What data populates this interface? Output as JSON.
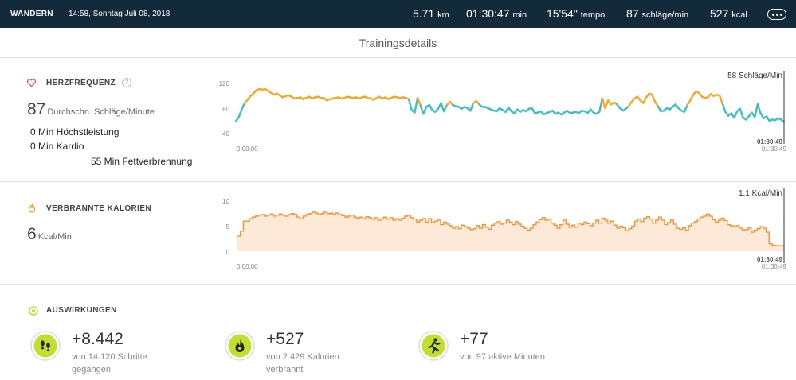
{
  "header": {
    "activity": "WANDERN",
    "datetime": "14:58, Sonntag Juli 08, 2018",
    "distance_value": "5.71",
    "distance_unit": "km",
    "duration_value": "01:30:47",
    "duration_unit": "min",
    "pace_value": "15'54\"",
    "pace_unit": "tempo",
    "hr_value": "87",
    "hr_unit": "schläge/min",
    "calories_value": "527",
    "calories_unit": "kcal"
  },
  "section_title": "Trainingsdetails",
  "heart_rate": {
    "title": "HERZFREQUENZ",
    "help": "?",
    "avg_value": "87",
    "avg_unit": "Durchschn. Schläge/Minute",
    "zones": [
      "0 Min Höchstleistung",
      "0 Min Kardio",
      "55 Min Fettverbrennung"
    ],
    "current_label": "58 Schläge/Min",
    "start_time": "0:00:00",
    "end_time": "01:30:49",
    "end_time_marker": "01:30:49"
  },
  "calories": {
    "title": "VERBRANNTE KALORIEN",
    "value": "6",
    "unit": "Kcal/Min",
    "current_label": "1.1 Kcal/Min",
    "start_time": "0:00:00",
    "end_time": "01:30:49",
    "end_time_marker": "01:30:49"
  },
  "impact": {
    "title": "AUSWIRKUNGEN",
    "items": [
      {
        "icon": "footsteps-icon",
        "value": "+8.442",
        "sub": "von 14.120 Schritte gegangen"
      },
      {
        "icon": "flame-icon",
        "value": "+527",
        "sub": "von 2.429 Kalorien verbrannt"
      },
      {
        "icon": "runner-icon",
        "value": "+77",
        "sub": "von 97 aktive Minuten"
      }
    ]
  },
  "colors": {
    "topbar": "#122a3a",
    "hr_high": "#f5a623",
    "hr_low": "#3ebfbf",
    "calories_line": "#f39233",
    "calories_fill": "#fde9d8",
    "impact_green": "#c4de2f",
    "heart_icon": "#e84a4a"
  },
  "chart_data": [
    {
      "type": "line",
      "title": "HERZFREQUENZ",
      "xlabel": "",
      "ylabel": "",
      "x_range": [
        "0:00:00",
        "01:30:49"
      ],
      "ylim": [
        40,
        120
      ],
      "yticks": [
        40,
        80,
        120
      ],
      "threshold": 86,
      "series": [
        {
          "values": [
            59,
            66,
            78,
            88,
            93,
            99,
            103,
            108,
            110,
            109,
            110,
            107,
            104,
            101,
            103,
            100,
            97,
            99,
            100,
            98,
            95,
            96,
            97,
            94,
            96,
            98,
            95,
            97,
            98,
            96,
            96,
            92,
            94,
            95,
            96,
            97,
            95,
            96,
            98,
            97,
            96,
            97,
            95,
            97,
            98,
            96,
            95,
            93,
            96,
            98,
            95,
            97,
            94,
            96,
            98,
            97,
            96,
            97,
            96,
            94,
            77,
            73,
            96,
            84,
            71,
            82,
            85,
            77,
            74,
            79,
            88,
            75,
            85,
            90,
            85,
            83,
            82,
            79,
            82,
            80,
            76,
            88,
            91,
            86,
            82,
            82,
            80,
            78,
            76,
            75,
            80,
            77,
            74,
            81,
            75,
            72,
            78,
            74,
            77,
            75,
            79,
            80,
            72,
            73,
            75,
            70,
            72,
            74,
            76,
            71,
            73,
            70,
            73,
            76,
            72,
            73,
            74,
            72,
            76,
            75,
            72,
            78,
            73,
            71,
            74,
            95,
            80,
            92,
            86,
            89,
            86,
            80,
            76,
            79,
            83,
            90,
            95,
            98,
            92,
            88,
            97,
            103,
            101,
            90,
            83,
            75,
            76,
            80,
            78,
            82,
            86,
            80,
            76,
            74,
            85,
            92,
            101,
            106,
            104,
            98,
            96,
            97,
            102,
            99,
            101,
            100,
            87,
            74,
            68,
            72,
            65,
            75,
            79,
            65,
            62,
            67,
            73,
            66,
            86,
            72,
            64,
            67,
            60,
            62,
            61,
            64,
            62,
            58
          ]
        }
      ]
    },
    {
      "type": "area",
      "title": "VERBRANNTE KALORIEN",
      "xlabel": "",
      "ylabel": "",
      "x_range": [
        "0:00:00",
        "01:30:49"
      ],
      "ylim": [
        0,
        10
      ],
      "yticks": [
        0,
        5,
        10
      ],
      "series": [
        {
          "values": [
            3,
            4,
            6,
            6,
            6.5,
            6.8,
            7,
            7.2,
            7.3,
            7,
            7.2,
            7.4,
            7,
            7.2,
            7.4,
            7.2,
            7,
            7.3,
            7.5,
            7.3,
            6.8,
            6.5,
            7,
            7.3,
            7.5,
            7.8,
            7.6,
            7.3,
            7.5,
            7.8,
            7.5,
            7.6,
            7.3,
            7.6,
            7.3,
            7.1,
            6.8,
            7,
            7.2,
            6.8,
            6.6,
            6.8,
            6.5,
            6.9,
            6.7,
            6.4,
            6.7,
            6.2,
            6.5,
            6.8,
            6.4,
            6.7,
            6.2,
            6.5,
            6.2,
            6.6,
            7,
            7.2,
            6.7,
            6.4,
            5.8,
            6.2,
            6.5,
            5.8,
            6.5,
            5.7,
            6,
            6.2,
            5.3,
            5.8,
            5.4,
            5.1,
            4.6,
            4.9,
            4.5,
            5.2,
            4.9,
            4.6,
            4.3,
            4.5,
            5.1,
            4.6,
            5.3,
            4.8,
            4.4,
            5.2,
            5.6,
            5.9,
            5.4,
            5.6,
            6.2,
            5.8,
            5.3,
            5.9,
            5.4,
            5,
            4.6,
            4.2,
            4.6,
            5.3,
            5.8,
            6.3,
            6.7,
            6.2,
            6.4,
            5.6,
            5.2,
            4.6,
            5.3,
            6.2,
            5.4,
            4.8,
            5.2,
            4.8,
            5.6,
            5.3,
            5.8,
            5.5,
            5.1,
            5.6,
            6.2,
            5.6,
            6.6,
            6.2,
            5.6,
            6,
            5.2,
            4.6,
            5,
            4.7,
            4.1,
            4.5,
            5,
            6,
            6.4,
            5.9,
            6.6,
            6.9,
            6.4,
            5.6,
            6.2,
            6.8,
            6.2,
            5.3,
            5.7,
            6.2,
            5.4,
            4.6,
            4.4,
            4.7,
            4.2,
            5.1,
            5.6,
            5.9,
            6.4,
            6.8,
            7,
            7.4,
            7,
            6.3,
            5.8,
            6.2,
            6.6,
            6.1,
            5.3,
            5.1,
            4.9,
            5.1,
            4.6,
            4.2,
            4.3,
            4.7,
            3.8,
            4.2,
            4.5,
            4.9,
            4.6,
            3.8,
            1.5,
            1.2,
            1.1,
            1.1,
            1.1
          ]
        }
      ]
    }
  ]
}
